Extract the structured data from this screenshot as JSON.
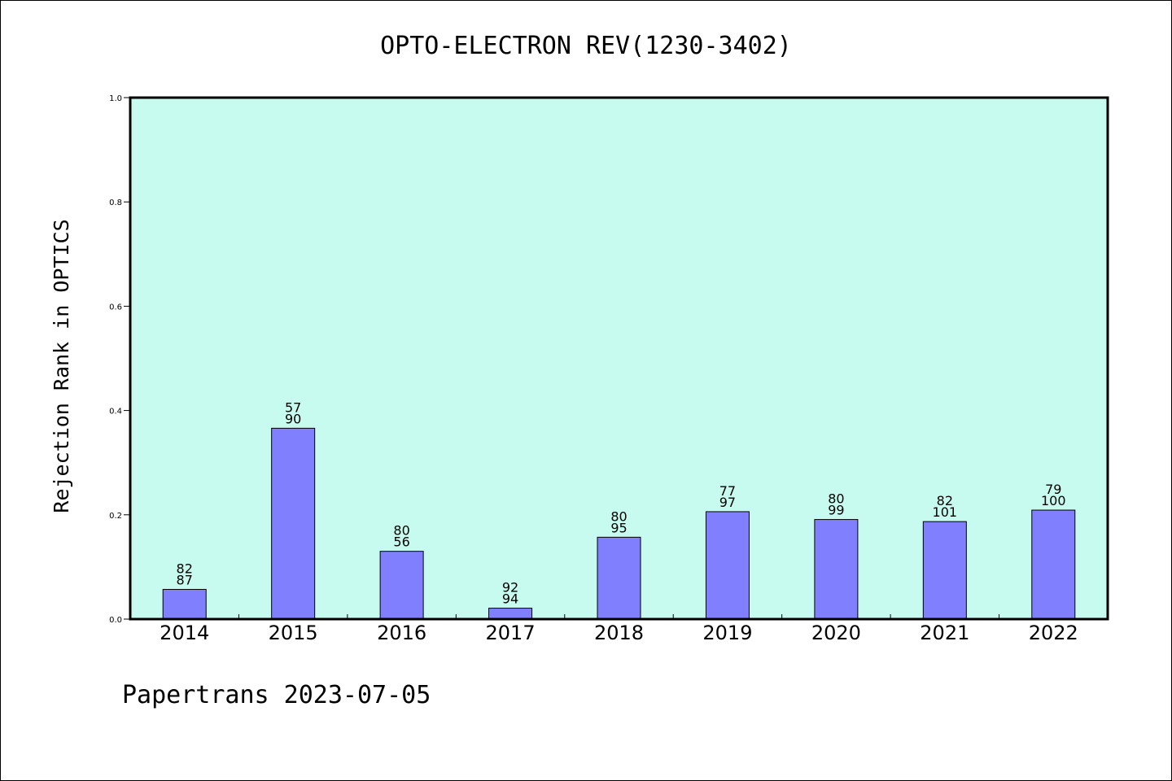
{
  "chart_data": {
    "type": "bar",
    "title": "OPTO-ELECTRON REV(1230-3402)",
    "xlabel": "",
    "ylabel": "Rejection Rank in OPTICS",
    "ylim": [
      0,
      1.0
    ],
    "yticks": [
      "0.0",
      "0.2",
      "0.4",
      "0.6",
      "0.8",
      "1.0"
    ],
    "categories": [
      "2014",
      "2015",
      "2016",
      "2017",
      "2018",
      "2019",
      "2020",
      "2021",
      "2022"
    ],
    "values": [
      0.057,
      0.366,
      0.13,
      0.021,
      0.157,
      0.206,
      0.191,
      0.187,
      0.209
    ],
    "labels_top": [
      "82",
      "57",
      "80",
      "92",
      "80",
      "77",
      "80",
      "82",
      "79"
    ],
    "labels_bottom": [
      "87",
      "90",
      "56",
      "94",
      "95",
      "97",
      "99",
      "101",
      "100"
    ],
    "grid": false,
    "colors": {
      "plot_background": "#c8fbef",
      "bar_fill": "#8080ff",
      "bar_edge": "#000000"
    }
  },
  "footer": {
    "text": "Papertrans 2023-07-05"
  }
}
